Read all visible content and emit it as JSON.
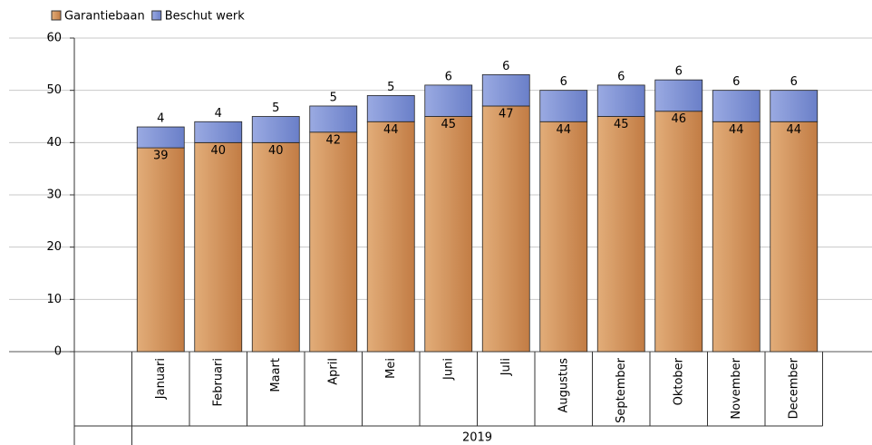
{
  "chart_data": {
    "type": "bar",
    "stacked": true,
    "categories": [
      "Januari",
      "Februari",
      "Maart",
      "April",
      "Mei",
      "Juni",
      "Juli",
      "Augustus",
      "September",
      "Oktober",
      "November",
      "December"
    ],
    "x_group_label": "2019",
    "series": [
      {
        "name": "Garantiebaan",
        "color": "#d2915a",
        "values": [
          39,
          40,
          40,
          42,
          44,
          45,
          47,
          44,
          45,
          46,
          44,
          44
        ]
      },
      {
        "name": "Beschut werk",
        "color": "#7f93d6",
        "values": [
          4,
          4,
          5,
          5,
          5,
          6,
          6,
          6,
          6,
          6,
          6,
          6
        ]
      }
    ],
    "ylim": [
      0,
      60
    ],
    "yticks": [
      0,
      10,
      20,
      30,
      40,
      50,
      60
    ],
    "grid": true,
    "legend": "top-left"
  }
}
